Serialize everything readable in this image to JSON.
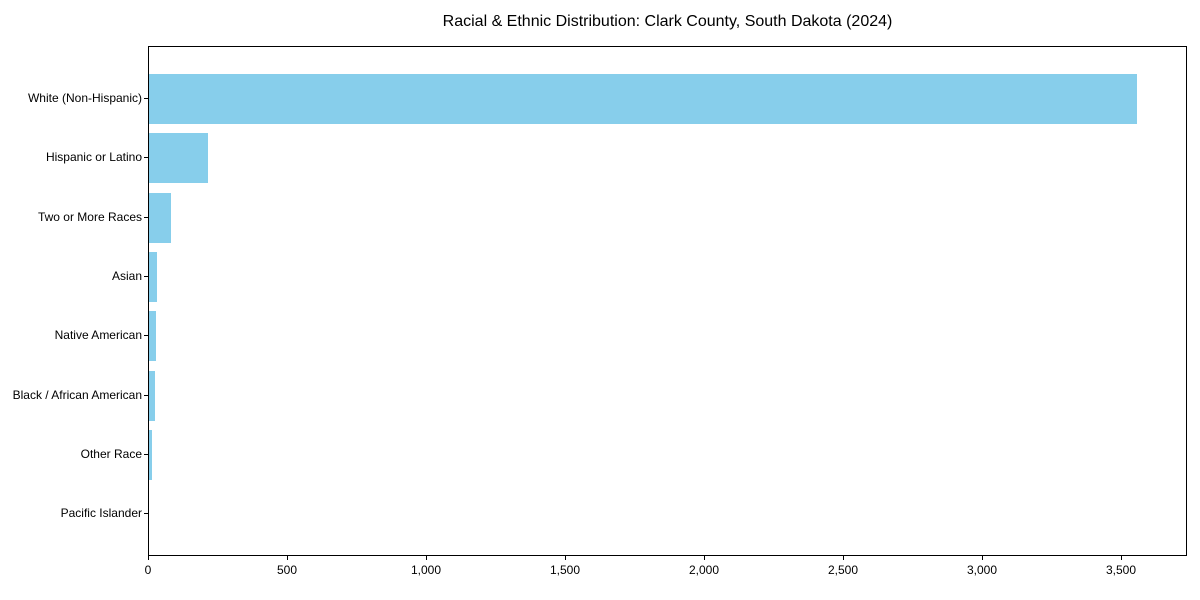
{
  "chart_data": {
    "type": "bar",
    "orientation": "horizontal",
    "title": "Racial & Ethnic Distribution: Clark County, South Dakota (2024)",
    "categories": [
      "White (Non-Hispanic)",
      "Hispanic or Latino",
      "Two or More Races",
      "Asian",
      "Native American",
      "Black / African American",
      "Other Race",
      "Pacific Islander"
    ],
    "values": [
      3553,
      211,
      78,
      30,
      26,
      23,
      10,
      1
    ],
    "xlabel": "",
    "ylabel": "",
    "xlim": [
      0,
      3736
    ],
    "x_ticks": [
      0,
      500,
      1000,
      1500,
      2000,
      2500,
      3000,
      3500
    ],
    "x_tick_labels": [
      "0",
      "500",
      "1,000",
      "1,500",
      "2,000",
      "2,500",
      "3,000",
      "3,500"
    ],
    "bar_color": "#87CEEB",
    "grid": false,
    "legend": null
  }
}
